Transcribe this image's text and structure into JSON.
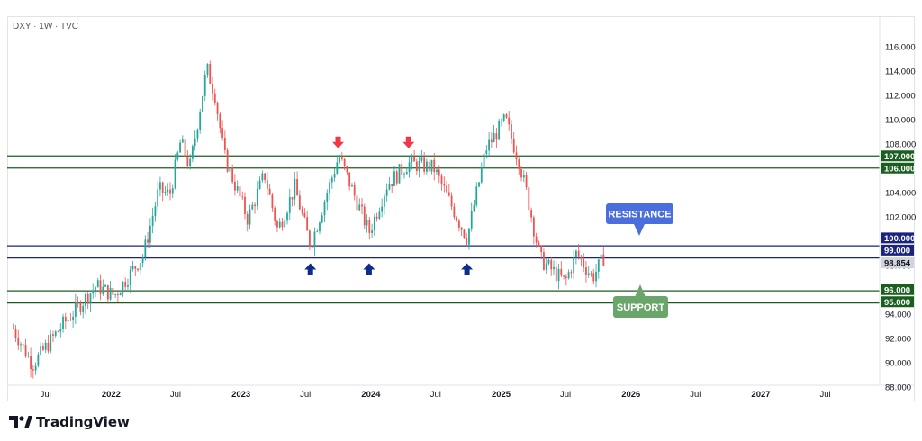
{
  "header": {
    "symbol": "DXY · 1W · TVC"
  },
  "brand": {
    "name": "TradingView",
    "logo_icon": "tradingview-logo-icon"
  },
  "annotations": {
    "resistance": "RESISTANCE",
    "support": "SUPPORT"
  },
  "colors": {
    "up": "#26a69a",
    "down": "#ef5350",
    "green_line": "#1b5e20",
    "blue_line": "#1a237e",
    "resistance_box": "#4a6fdc",
    "support_box": "#6aa56a",
    "arrow_down": "#f23645",
    "arrow_up": "#0d2d8a"
  },
  "chart_data": {
    "type": "candlestick",
    "title": "",
    "ylim": [
      86,
      118
    ],
    "y_ticks": [
      "116.000",
      "114.000",
      "112.000",
      "110.000",
      "108.000",
      "104.000",
      "102.000",
      "98.000",
      "94.000",
      "92.000",
      "90.000",
      "88.000"
    ],
    "x_ticks": [
      "Jul",
      "2022",
      "Jul",
      "2023",
      "Jul",
      "2024",
      "Jul",
      "2025",
      "Jul",
      "2026",
      "Jul",
      "2027",
      "Jul"
    ],
    "price_labels": [
      {
        "text": "107.000",
        "value": 107.0,
        "style": "green"
      },
      {
        "text": "106.000",
        "value": 106.0,
        "style": "green"
      },
      {
        "text": "100.000",
        "value": 100.0,
        "style": "blue"
      },
      {
        "text": "99.000",
        "value": 99.0,
        "style": "blue"
      },
      {
        "text": "98.854",
        "value": 98.854,
        "style": "current"
      },
      {
        "text": "96.000",
        "value": 96.0,
        "style": "green"
      },
      {
        "text": "95.000",
        "value": 95.0,
        "style": "green"
      }
    ],
    "horizontal_lines": [
      {
        "value": 107.0,
        "style": "green"
      },
      {
        "value": 106.0,
        "style": "green"
      },
      {
        "value": 99.6,
        "style": "blue"
      },
      {
        "value": 98.6,
        "style": "blue"
      },
      {
        "value": 95.9,
        "style": "green"
      },
      {
        "value": 94.9,
        "style": "green"
      }
    ],
    "price_path": [
      {
        "date": "2021-04-01",
        "price": 92.8
      },
      {
        "date": "2021-05-25",
        "price": 89.8
      },
      {
        "date": "2021-08-15",
        "price": 93.0
      },
      {
        "date": "2021-11-20",
        "price": 96.3
      },
      {
        "date": "2022-01-10",
        "price": 95.5
      },
      {
        "date": "2022-04-01",
        "price": 98.8
      },
      {
        "date": "2022-05-15",
        "price": 104.2
      },
      {
        "date": "2022-06-15",
        "price": 103.8
      },
      {
        "date": "2022-07-15",
        "price": 108.2
      },
      {
        "date": "2022-08-10",
        "price": 106.0
      },
      {
        "date": "2022-09-27",
        "price": 114.2
      },
      {
        "date": "2022-10-20",
        "price": 112.0
      },
      {
        "date": "2022-11-15",
        "price": 107.0
      },
      {
        "date": "2023-01-20",
        "price": 101.8
      },
      {
        "date": "2023-03-08",
        "price": 105.5
      },
      {
        "date": "2023-04-14",
        "price": 100.9
      },
      {
        "date": "2023-06-01",
        "price": 104.4
      },
      {
        "date": "2023-07-15",
        "price": 99.6
      },
      {
        "date": "2023-10-03",
        "price": 107.0
      },
      {
        "date": "2023-12-27",
        "price": 100.7
      },
      {
        "date": "2024-02-15",
        "price": 104.6
      },
      {
        "date": "2024-04-16",
        "price": 106.4
      },
      {
        "date": "2024-06-26",
        "price": 106.0
      },
      {
        "date": "2024-09-27",
        "price": 100.2
      },
      {
        "date": "2024-11-20",
        "price": 107.6
      },
      {
        "date": "2025-01-13",
        "price": 110.0
      },
      {
        "date": "2025-02-20",
        "price": 106.6
      },
      {
        "date": "2025-03-15",
        "price": 103.8
      },
      {
        "date": "2025-04-21",
        "price": 98.5
      },
      {
        "date": "2025-06-30",
        "price": 96.6
      },
      {
        "date": "2025-08-01",
        "price": 99.0
      },
      {
        "date": "2025-09-15",
        "price": 97.0
      },
      {
        "date": "2025-10-20",
        "price": 98.8
      }
    ],
    "markers": [
      {
        "type": "down",
        "date": "2023-10-01",
        "price": 108.0
      },
      {
        "type": "down",
        "date": "2024-04-16",
        "price": 108.0
      },
      {
        "type": "up",
        "date": "2023-07-15",
        "price": 97.8
      },
      {
        "type": "up",
        "date": "2023-12-27",
        "price": 97.8
      },
      {
        "type": "up",
        "date": "2024-09-27",
        "price": 97.8
      }
    ]
  }
}
